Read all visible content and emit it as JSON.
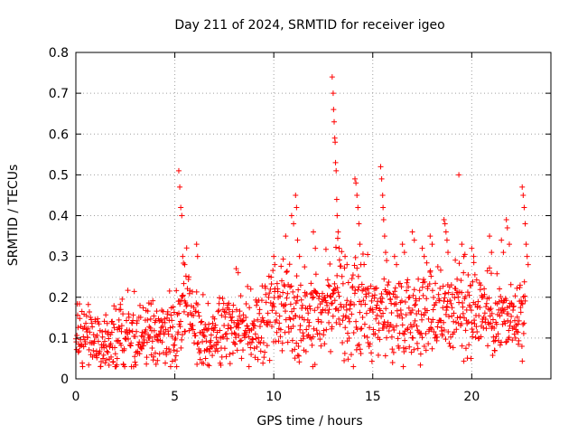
{
  "chart_data": {
    "type": "scatter",
    "title": "Day 211 of 2024, SRMTID for receiver igeo",
    "xlabel": "GPS time / hours",
    "ylabel": "SRMTID / TECUs",
    "xlim": [
      0,
      24
    ],
    "ylim": [
      0,
      0.8
    ],
    "x_ticks": [
      0,
      5,
      10,
      15,
      20
    ],
    "x_tick_labels": [
      "0",
      "5",
      "10",
      "15",
      "20"
    ],
    "y_ticks": [
      0,
      0.1,
      0.2,
      0.3,
      0.4,
      0.5,
      0.6,
      0.7,
      0.8
    ],
    "y_tick_labels": [
      "0",
      "0.1",
      "0.2",
      "0.3",
      "0.4",
      "0.5",
      "0.6",
      "0.7",
      "0.8"
    ],
    "grid": true,
    "marker": "+",
    "series": [
      {
        "name": "SRMTID",
        "color": "#ff0000",
        "baseline_profile": [
          [
            0.0,
            0.105
          ],
          [
            0.5,
            0.11
          ],
          [
            1.0,
            0.09
          ],
          [
            1.5,
            0.085
          ],
          [
            2.0,
            0.1
          ],
          [
            2.5,
            0.12
          ],
          [
            3.0,
            0.11
          ],
          [
            3.5,
            0.1
          ],
          [
            4.0,
            0.11
          ],
          [
            4.5,
            0.11
          ],
          [
            5.0,
            0.1
          ],
          [
            5.3,
            0.16
          ],
          [
            5.6,
            0.2
          ],
          [
            6.0,
            0.15
          ],
          [
            6.5,
            0.11
          ],
          [
            7.0,
            0.11
          ],
          [
            7.5,
            0.12
          ],
          [
            8.0,
            0.12
          ],
          [
            8.5,
            0.12
          ],
          [
            9.0,
            0.12
          ],
          [
            9.5,
            0.14
          ],
          [
            10.0,
            0.17
          ],
          [
            10.5,
            0.18
          ],
          [
            11.0,
            0.17
          ],
          [
            11.5,
            0.16
          ],
          [
            12.0,
            0.16
          ],
          [
            12.5,
            0.18
          ],
          [
            13.0,
            0.2
          ],
          [
            13.5,
            0.17
          ],
          [
            14.0,
            0.17
          ],
          [
            14.5,
            0.17
          ],
          [
            15.0,
            0.17
          ],
          [
            15.5,
            0.16
          ],
          [
            16.0,
            0.16
          ],
          [
            16.5,
            0.16
          ],
          [
            17.0,
            0.16
          ],
          [
            17.5,
            0.17
          ],
          [
            18.0,
            0.17
          ],
          [
            18.5,
            0.18
          ],
          [
            19.0,
            0.17
          ],
          [
            19.5,
            0.17
          ],
          [
            20.0,
            0.18
          ],
          [
            20.5,
            0.17
          ],
          [
            21.0,
            0.16
          ],
          [
            21.5,
            0.15
          ],
          [
            22.0,
            0.14
          ],
          [
            22.7,
            0.15
          ]
        ],
        "points": [
          [
            5.2,
            0.51
          ],
          [
            5.25,
            0.47
          ],
          [
            5.3,
            0.42
          ],
          [
            5.35,
            0.4
          ],
          [
            5.4,
            0.3
          ],
          [
            5.5,
            0.28
          ],
          [
            6.1,
            0.33
          ],
          [
            6.15,
            0.3
          ],
          [
            8.1,
            0.27
          ],
          [
            8.2,
            0.26
          ],
          [
            10.0,
            0.3
          ],
          [
            10.05,
            0.28
          ],
          [
            10.6,
            0.35
          ],
          [
            10.9,
            0.4
          ],
          [
            11.0,
            0.38
          ],
          [
            11.1,
            0.45
          ],
          [
            11.15,
            0.42
          ],
          [
            11.2,
            0.34
          ],
          [
            11.3,
            0.3
          ],
          [
            12.0,
            0.36
          ],
          [
            12.1,
            0.32
          ],
          [
            12.95,
            0.74
          ],
          [
            13.0,
            0.7
          ],
          [
            13.02,
            0.66
          ],
          [
            13.05,
            0.63
          ],
          [
            13.08,
            0.59
          ],
          [
            13.1,
            0.58
          ],
          [
            13.12,
            0.53
          ],
          [
            13.15,
            0.51
          ],
          [
            13.18,
            0.44
          ],
          [
            13.2,
            0.4
          ],
          [
            13.25,
            0.36
          ],
          [
            13.3,
            0.32
          ],
          [
            13.6,
            0.3
          ],
          [
            13.7,
            0.28
          ],
          [
            14.1,
            0.49
          ],
          [
            14.15,
            0.48
          ],
          [
            14.2,
            0.45
          ],
          [
            14.25,
            0.42
          ],
          [
            14.3,
            0.38
          ],
          [
            14.35,
            0.33
          ],
          [
            14.4,
            0.28
          ],
          [
            15.4,
            0.52
          ],
          [
            15.45,
            0.49
          ],
          [
            15.5,
            0.45
          ],
          [
            15.52,
            0.42
          ],
          [
            15.55,
            0.39
          ],
          [
            15.6,
            0.35
          ],
          [
            15.65,
            0.31
          ],
          [
            15.7,
            0.29
          ],
          [
            16.1,
            0.3
          ],
          [
            16.2,
            0.28
          ],
          [
            16.5,
            0.33
          ],
          [
            16.6,
            0.31
          ],
          [
            17.0,
            0.36
          ],
          [
            17.1,
            0.34
          ],
          [
            17.5,
            0.32
          ],
          [
            17.6,
            0.3
          ],
          [
            17.9,
            0.35
          ],
          [
            18.0,
            0.33
          ],
          [
            18.6,
            0.39
          ],
          [
            18.65,
            0.38
          ],
          [
            18.7,
            0.36
          ],
          [
            18.75,
            0.34
          ],
          [
            18.8,
            0.31
          ],
          [
            19.35,
            0.5
          ],
          [
            19.5,
            0.33
          ],
          [
            19.6,
            0.3
          ],
          [
            20.0,
            0.32
          ],
          [
            20.1,
            0.3
          ],
          [
            20.9,
            0.35
          ],
          [
            21.0,
            0.31
          ],
          [
            21.5,
            0.34
          ],
          [
            21.6,
            0.31
          ],
          [
            21.75,
            0.39
          ],
          [
            21.8,
            0.37
          ],
          [
            21.9,
            0.33
          ],
          [
            22.55,
            0.47
          ],
          [
            22.6,
            0.45
          ],
          [
            22.65,
            0.42
          ],
          [
            22.7,
            0.38
          ],
          [
            22.75,
            0.33
          ],
          [
            22.8,
            0.3
          ],
          [
            22.85,
            0.28
          ]
        ]
      }
    ]
  }
}
